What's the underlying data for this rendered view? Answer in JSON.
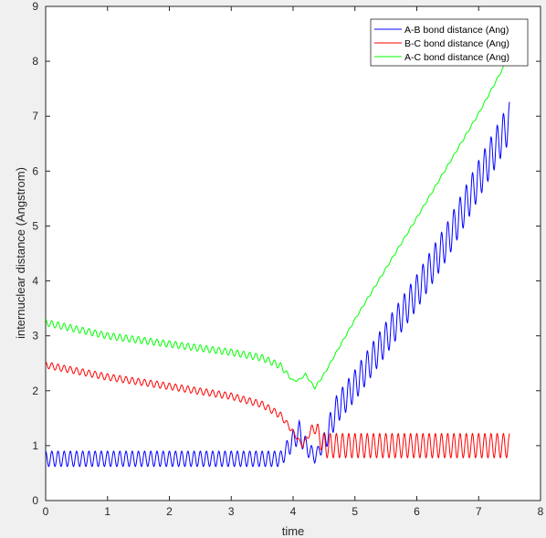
{
  "chart_data": {
    "type": "line",
    "title": "",
    "xlabel": "time",
    "ylabel": "internuclear distance (Angstrom)",
    "xlim": [
      0,
      8
    ],
    "ylim": [
      0,
      9
    ],
    "xticks": [
      "0",
      "1",
      "2",
      "3",
      "4",
      "5",
      "6",
      "7",
      "8"
    ],
    "yticks": [
      "0",
      "1",
      "2",
      "3",
      "4",
      "5",
      "6",
      "7",
      "8",
      "9"
    ],
    "grid": false,
    "legend_position": "top-right",
    "x_end": 7.5,
    "series": [
      {
        "name": "A-B bond distance (Ang)",
        "color": "#0000ff",
        "baseline": [
          [
            0,
            0.76
          ],
          [
            3.8,
            0.76
          ],
          [
            4.0,
            1.1
          ],
          [
            4.1,
            1.25
          ],
          [
            4.2,
            1.0
          ],
          [
            4.35,
            0.8
          ],
          [
            4.5,
            1.05
          ],
          [
            4.7,
            1.65
          ],
          [
            5.0,
            2.1
          ],
          [
            5.5,
            2.95
          ],
          [
            6.0,
            3.8
          ],
          [
            6.5,
            4.75
          ],
          [
            7.0,
            5.85
          ],
          [
            7.5,
            6.9
          ]
        ],
        "osc_period": 0.1,
        "osc_amplitude": [
          [
            0,
            0.14
          ],
          [
            3.8,
            0.14
          ],
          [
            4.1,
            0.2
          ],
          [
            4.4,
            0.1
          ],
          [
            4.6,
            0.25
          ],
          [
            5.0,
            0.28
          ],
          [
            7.5,
            0.36
          ]
        ]
      },
      {
        "name": "B-C bond distance (Ang)",
        "color": "#ff0000",
        "baseline": [
          [
            0,
            2.47
          ],
          [
            1.0,
            2.25
          ],
          [
            2.0,
            2.08
          ],
          [
            3.0,
            1.9
          ],
          [
            3.5,
            1.75
          ],
          [
            3.8,
            1.55
          ],
          [
            4.0,
            1.25
          ],
          [
            4.15,
            1.0
          ],
          [
            4.25,
            1.2
          ],
          [
            4.35,
            1.35
          ],
          [
            4.5,
            1.0
          ],
          [
            7.5,
            1.0
          ]
        ],
        "osc_period": 0.1,
        "osc_amplitude": [
          [
            0,
            0.06
          ],
          [
            3.8,
            0.06
          ],
          [
            4.2,
            0.03
          ],
          [
            4.5,
            0.22
          ],
          [
            7.5,
            0.22
          ]
        ]
      },
      {
        "name": "A-C bond distance (Ang)",
        "color": "#00ff00",
        "baseline": [
          [
            0,
            3.24
          ],
          [
            1.0,
            3.0
          ],
          [
            2.0,
            2.85
          ],
          [
            3.0,
            2.7
          ],
          [
            3.5,
            2.6
          ],
          [
            3.8,
            2.45
          ],
          [
            4.0,
            2.18
          ],
          [
            4.1,
            2.2
          ],
          [
            4.2,
            2.3
          ],
          [
            4.35,
            2.05
          ],
          [
            4.5,
            2.3
          ],
          [
            5.0,
            3.3
          ],
          [
            6.0,
            5.15
          ],
          [
            7.0,
            7.05
          ],
          [
            7.5,
            8.1
          ]
        ],
        "osc_period": 0.1,
        "osc_amplitude": [
          [
            0,
            0.06
          ],
          [
            3.8,
            0.06
          ],
          [
            4.0,
            0.02
          ],
          [
            4.5,
            0.02
          ],
          [
            7.5,
            0.02
          ]
        ]
      }
    ]
  }
}
